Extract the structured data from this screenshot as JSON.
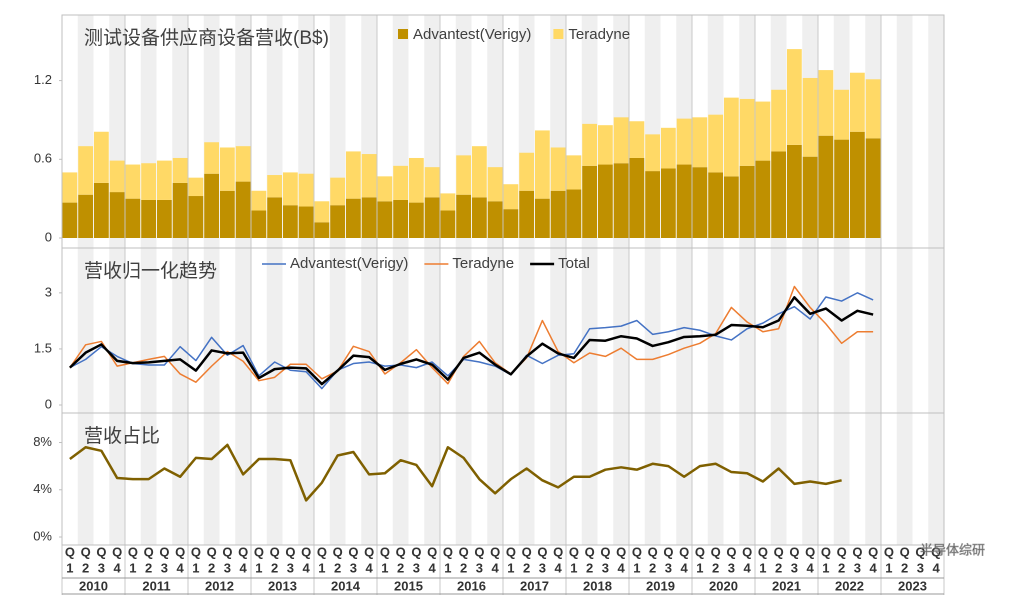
{
  "x_axis": {
    "quarter_prefix": "Q",
    "quarters": [
      "1",
      "2",
      "3",
      "4"
    ],
    "years": [
      "2010",
      "2011",
      "2012",
      "2013",
      "2014",
      "2015",
      "2016",
      "2017",
      "2018",
      "2019",
      "2020",
      "2021",
      "2022",
      "2023"
    ]
  },
  "watermark": "半导体综研",
  "chart_data": [
    {
      "type": "bar",
      "stacked": true,
      "title": "测试设备供应商设备营收(B$)",
      "ylim": [
        0,
        1.7
      ],
      "yticks": [
        0,
        0.6,
        1.2
      ],
      "series": [
        {
          "name": "Advantest(Verigy)",
          "color": "#bf9000",
          "values": [
            0.27,
            0.33,
            0.42,
            0.35,
            0.3,
            0.29,
            0.29,
            0.42,
            0.32,
            0.49,
            0.36,
            0.43,
            0.21,
            0.31,
            0.25,
            0.24,
            0.12,
            0.25,
            0.3,
            0.31,
            0.28,
            0.29,
            0.27,
            0.31,
            0.21,
            0.33,
            0.31,
            0.28,
            0.22,
            0.36,
            0.3,
            0.36,
            0.37,
            0.55,
            0.56,
            0.57,
            0.61,
            0.51,
            0.53,
            0.56,
            0.54,
            0.5,
            0.47,
            0.55,
            0.59,
            0.66,
            0.71,
            0.62,
            0.78,
            0.75,
            0.81,
            0.76
          ]
        },
        {
          "name": "Teradyne",
          "color": "#ffd966",
          "values": [
            0.23,
            0.37,
            0.39,
            0.24,
            0.26,
            0.28,
            0.3,
            0.19,
            0.14,
            0.24,
            0.33,
            0.27,
            0.15,
            0.17,
            0.25,
            0.25,
            0.16,
            0.21,
            0.36,
            0.33,
            0.19,
            0.26,
            0.34,
            0.23,
            0.13,
            0.3,
            0.39,
            0.26,
            0.19,
            0.29,
            0.52,
            0.33,
            0.26,
            0.32,
            0.3,
            0.35,
            0.28,
            0.28,
            0.31,
            0.35,
            0.38,
            0.44,
            0.6,
            0.51,
            0.45,
            0.47,
            0.73,
            0.6,
            0.5,
            0.38,
            0.45,
            0.45
          ]
        }
      ]
    },
    {
      "type": "line",
      "title": "营收归一化趋势",
      "ylim": [
        0,
        4.2
      ],
      "yticks": [
        0,
        1.5,
        3
      ],
      "series": [
        {
          "name": "Advantest(Verigy)",
          "color": "#4472c4",
          "width": 1.5,
          "values": [
            1.0,
            1.22,
            1.56,
            1.3,
            1.11,
            1.07,
            1.07,
            1.56,
            1.19,
            1.81,
            1.33,
            1.59,
            0.78,
            1.15,
            0.93,
            0.89,
            0.44,
            0.93,
            1.11,
            1.15,
            1.04,
            1.07,
            1.0,
            1.15,
            0.78,
            1.22,
            1.15,
            1.04,
            0.81,
            1.33,
            1.11,
            1.33,
            1.37,
            2.04,
            2.07,
            2.11,
            2.26,
            1.89,
            1.96,
            2.07,
            2.0,
            1.85,
            1.74,
            2.04,
            2.19,
            2.44,
            2.63,
            2.3,
            2.89,
            2.78,
            3.0,
            2.81
          ]
        },
        {
          "name": "Teradyne",
          "color": "#ed7d31",
          "width": 1.5,
          "values": [
            1.0,
            1.61,
            1.7,
            1.04,
            1.13,
            1.22,
            1.3,
            0.83,
            0.61,
            1.04,
            1.43,
            1.17,
            0.65,
            0.74,
            1.09,
            1.09,
            0.7,
            0.91,
            1.57,
            1.43,
            0.83,
            1.13,
            1.48,
            1.0,
            0.57,
            1.3,
            1.7,
            1.13,
            0.83,
            1.26,
            2.26,
            1.43,
            1.13,
            1.39,
            1.3,
            1.52,
            1.22,
            1.22,
            1.35,
            1.52,
            1.65,
            1.91,
            2.61,
            2.22,
            1.96,
            2.04,
            3.17,
            2.61,
            2.17,
            1.65,
            1.96,
            1.96
          ]
        },
        {
          "name": "Total",
          "color": "#000000",
          "width": 2.5,
          "values": [
            1.0,
            1.4,
            1.62,
            1.18,
            1.12,
            1.14,
            1.18,
            1.22,
            0.92,
            1.46,
            1.38,
            1.4,
            0.72,
            0.96,
            1.0,
            0.98,
            0.56,
            0.92,
            1.32,
            1.28,
            0.94,
            1.1,
            1.22,
            1.08,
            0.68,
            1.26,
            1.4,
            1.08,
            0.82,
            1.3,
            1.64,
            1.38,
            1.26,
            1.74,
            1.72,
            1.84,
            1.78,
            1.58,
            1.68,
            1.82,
            1.84,
            1.88,
            2.14,
            2.12,
            2.08,
            2.26,
            2.88,
            2.44,
            2.58,
            2.26,
            2.52,
            2.42
          ]
        }
      ]
    },
    {
      "type": "line",
      "title": "营收占比",
      "ylim": [
        0,
        10.5
      ],
      "yticks": [
        {
          "value": 0,
          "label": "0%"
        },
        {
          "value": 4,
          "label": "4%"
        },
        {
          "value": 8,
          "label": "8%"
        }
      ],
      "series": [
        {
          "color": "#7f6000",
          "width": 2.5,
          "values": [
            6.6,
            7.6,
            7.3,
            5.0,
            4.9,
            4.9,
            5.8,
            5.1,
            6.7,
            6.6,
            7.8,
            5.3,
            6.6,
            6.6,
            6.5,
            3.1,
            4.6,
            6.9,
            7.2,
            5.3,
            5.4,
            6.5,
            6.1,
            4.3,
            7.6,
            6.7,
            4.9,
            3.7,
            4.9,
            5.8,
            4.8,
            4.2,
            5.1,
            5.1,
            5.7,
            5.9,
            5.7,
            6.2,
            6.0,
            5.1,
            6.0,
            6.2,
            5.5,
            5.4,
            4.7,
            5.8,
            4.5,
            4.7,
            4.5,
            4.8
          ]
        }
      ]
    }
  ]
}
